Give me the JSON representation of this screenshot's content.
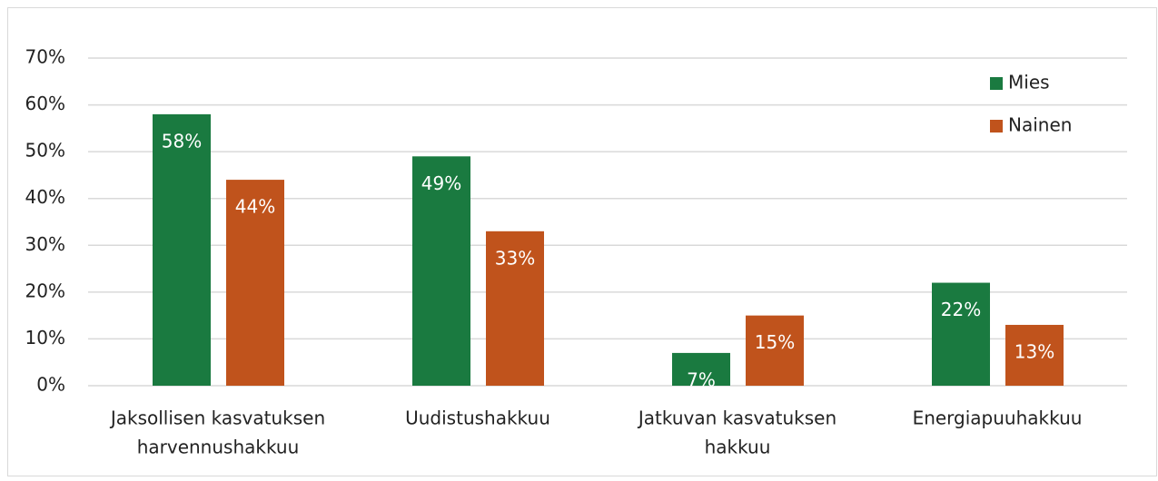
{
  "chart_data": {
    "type": "bar",
    "categories": [
      [
        "Jaksollisen kasvatuksen",
        "harvennushakkuu"
      ],
      [
        "Uudistushakkuu"
      ],
      [
        "Jatkuvan kasvatuksen",
        "hakkuu"
      ],
      [
        "Energiapuuhakkuu"
      ]
    ],
    "series": [
      {
        "name": "Mies",
        "color": "#1a7a40",
        "values": [
          58,
          49,
          7,
          22
        ],
        "value_labels": [
          "58%",
          "49%",
          "7%",
          "22%"
        ]
      },
      {
        "name": "Nainen",
        "color": "#c0531c",
        "values": [
          44,
          33,
          15,
          13
        ],
        "value_labels": [
          "44%",
          "33%",
          "15%",
          "13%"
        ]
      }
    ],
    "ylim": [
      0,
      70
    ],
    "yticks": [
      {
        "value": 0,
        "label": "0%"
      },
      {
        "value": 10,
        "label": "10%"
      },
      {
        "value": 20,
        "label": "20%"
      },
      {
        "value": 30,
        "label": "30%"
      },
      {
        "value": 40,
        "label": "40%"
      },
      {
        "value": 50,
        "label": "50%"
      },
      {
        "value": 60,
        "label": "60%"
      },
      {
        "value": 70,
        "label": "70%"
      }
    ],
    "grid": true,
    "legend": "upper right"
  }
}
